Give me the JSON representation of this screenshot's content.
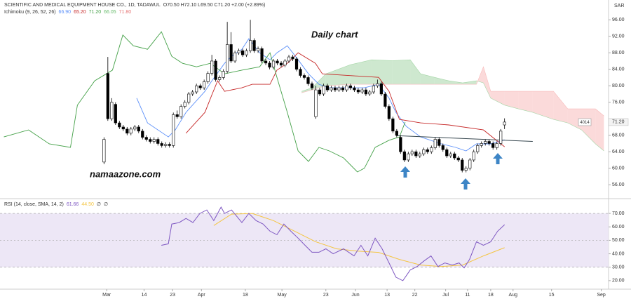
{
  "chart_data": [
    {
      "type": "candlestick",
      "title": "SCIENTIFIC AND MEDICAL EQUIPMENT HOUSE CO., 1D, TADAWUL",
      "subtitle": "O70.50 H72.10 L69.50 C71.20 +2.00 (+2.89%)",
      "indicator": "Ichimoku (9, 26, 52, 26)",
      "unit": "SAR",
      "annotations": [
        "Daily chart",
        "namaazone.com",
        "4014"
      ],
      "up_color": "#ffffff",
      "down_color": "#000000",
      "xlim": [
        -27,
        131
      ],
      "ylim": [
        52.8,
        100.8
      ],
      "yticks": [
        {
          "value": 96,
          "label": "96.00"
        },
        {
          "value": 92,
          "label": "92.00"
        },
        {
          "value": 88,
          "label": "88.00"
        },
        {
          "value": 84,
          "label": "84.00"
        },
        {
          "value": 80,
          "label": "80.00"
        },
        {
          "value": 76,
          "label": "76.00"
        },
        {
          "value": 68,
          "label": "68.00"
        },
        {
          "value": 64,
          "label": "64.00"
        },
        {
          "value": 60,
          "label": "60.00"
        },
        {
          "value": 56,
          "label": "56.00"
        }
      ],
      "grid": false,
      "last_price": {
        "value": 71.2,
        "label": "71.20"
      },
      "candles": [
        [
          61.5,
          67.5,
          61,
          67
        ],
        [
          83,
          87,
          71.5,
          72
        ],
        [
          72,
          77,
          71.5,
          76
        ],
        [
          75.5,
          76,
          70.5,
          71
        ],
        [
          71,
          71.5,
          69.5,
          70
        ],
        [
          70,
          70.5,
          69,
          69.5
        ],
        [
          69.5,
          70,
          68,
          68.5
        ],
        [
          68.5,
          70,
          68,
          69.5
        ],
        [
          69.5,
          70.5,
          69,
          70
        ],
        [
          70,
          70.5,
          68.5,
          69
        ],
        [
          69,
          69.5,
          67,
          67.5
        ],
        [
          67.5,
          68,
          66.5,
          67
        ],
        [
          67,
          67.5,
          66,
          66.5
        ],
        [
          66.5,
          67.5,
          66,
          67
        ],
        [
          67,
          67.5,
          65.5,
          66
        ],
        [
          66,
          66.5,
          65,
          65.5
        ],
        [
          65.5,
          66.3,
          65,
          65.8
        ],
        [
          65.8,
          66.3,
          65,
          65.5
        ],
        [
          65.5,
          73.5,
          65,
          73
        ],
        [
          73,
          74,
          72,
          72.5
        ],
        [
          72.5,
          75.5,
          72,
          75
        ],
        [
          75,
          76.5,
          74.5,
          76
        ],
        [
          76,
          78.5,
          75.5,
          78
        ],
        [
          78,
          79,
          77.5,
          78.5
        ],
        [
          78.5,
          80.5,
          78,
          80
        ],
        [
          80,
          80.5,
          79,
          79.5
        ],
        [
          79.5,
          81.5,
          79,
          81
        ],
        [
          81,
          83.5,
          80.5,
          83
        ],
        [
          83,
          87.5,
          82.5,
          86
        ],
        [
          86,
          86.5,
          81,
          81.5
        ],
        [
          81.5,
          82.5,
          81,
          82
        ],
        [
          82,
          84,
          81.5,
          83.5
        ],
        [
          83.5,
          95.5,
          83,
          90
        ],
        [
          90,
          93,
          85.5,
          86
        ],
        [
          86,
          88.5,
          85.5,
          88
        ],
        [
          88,
          89,
          87.5,
          88.5
        ],
        [
          88.5,
          89,
          87,
          87.5
        ],
        [
          87.5,
          89,
          87,
          88.5
        ],
        [
          88.5,
          96,
          88,
          91
        ],
        [
          91,
          91.5,
          88,
          88.5
        ],
        [
          88.5,
          89.5,
          88,
          89
        ],
        [
          89,
          89.5,
          85.5,
          86
        ],
        [
          86,
          86.5,
          85,
          85.5
        ],
        [
          85.5,
          86,
          84,
          84.5
        ],
        [
          84.5,
          86.5,
          84,
          86
        ],
        [
          86,
          86.5,
          85,
          85.5
        ],
        [
          85.5,
          86,
          84.5,
          85
        ],
        [
          85,
          86.5,
          84.5,
          86
        ],
        [
          86,
          87.5,
          85.5,
          87
        ],
        [
          87,
          87.5,
          86,
          86.5
        ],
        [
          86.5,
          87,
          83.5,
          84
        ],
        [
          84,
          84.5,
          82,
          82.5
        ],
        [
          82.5,
          83,
          81.5,
          82
        ],
        [
          82,
          82.5,
          80,
          80.5
        ],
        [
          80.5,
          81,
          79,
          79.5
        ],
        [
          72.5,
          80,
          72,
          79
        ],
        [
          79,
          79.5,
          77.5,
          78
        ],
        [
          78,
          80.5,
          77.5,
          80
        ],
        [
          80,
          80.5,
          78.5,
          79
        ],
        [
          79,
          80,
          78.5,
          79.5
        ],
        [
          79.5,
          80,
          78.5,
          79
        ],
        [
          79,
          80,
          78.5,
          79.5
        ],
        [
          79.5,
          80,
          78.5,
          79
        ],
        [
          79,
          80.5,
          78.5,
          80
        ],
        [
          80,
          80.5,
          79,
          79.5
        ],
        [
          79.5,
          80,
          78.5,
          79
        ],
        [
          79,
          79.5,
          78,
          78.5
        ],
        [
          78.5,
          79.5,
          78,
          79
        ],
        [
          79,
          79.5,
          77.5,
          78
        ],
        [
          78,
          79,
          77.5,
          78.5
        ],
        [
          78.5,
          80.5,
          78,
          80
        ],
        [
          80,
          81.5,
          79.5,
          80.5
        ],
        [
          80.5,
          81,
          77.5,
          78
        ],
        [
          78,
          78.5,
          74.5,
          75
        ],
        [
          75,
          75.5,
          71.5,
          72
        ],
        [
          72,
          72.5,
          68.5,
          69
        ],
        [
          69,
          69.5,
          67.5,
          68
        ],
        [
          67.5,
          68,
          63.5,
          64
        ],
        [
          64,
          64.5,
          61.5,
          62
        ],
        [
          62,
          64,
          61.5,
          63.5
        ],
        [
          63.5,
          64.5,
          63,
          64
        ],
        [
          64,
          64.5,
          62.5,
          63
        ],
        [
          63,
          64,
          62.5,
          63.5
        ],
        [
          63.5,
          65,
          63,
          64.5
        ],
        [
          64.5,
          65,
          63.5,
          64
        ],
        [
          64,
          65.5,
          63.5,
          65
        ],
        [
          65,
          67.5,
          64.5,
          67
        ],
        [
          67,
          67.5,
          65,
          65.5
        ],
        [
          65.5,
          66,
          64,
          64.5
        ],
        [
          64.5,
          65,
          62.5,
          63
        ],
        [
          63,
          64,
          62.5,
          63.5
        ],
        [
          63.5,
          64,
          62,
          62.5
        ],
        [
          62.5,
          63,
          61.5,
          62
        ],
        [
          62,
          62.5,
          59,
          59.5
        ],
        [
          59.5,
          60.5,
          59,
          60
        ],
        [
          60,
          62.5,
          59.5,
          62
        ],
        [
          62,
          64.5,
          61.5,
          64
        ],
        [
          64,
          66,
          63.5,
          65.5
        ],
        [
          65.5,
          66.5,
          65,
          66
        ],
        [
          66,
          67,
          65.5,
          66.5
        ],
        [
          66.5,
          67,
          65.5,
          66
        ],
        [
          66,
          66.5,
          64.5,
          65
        ],
        [
          65,
          66.5,
          64.5,
          66
        ],
        [
          66,
          69.5,
          65.5,
          69
        ],
        [
          70.5,
          72.1,
          69.5,
          71.2
        ]
      ],
      "series": [
        {
          "name": "Conversion Line",
          "color": "#5b8ff9",
          "legend_value": "66.90",
          "x": [
            8.5,
            11.3,
            16.7,
            18.5,
            21.3,
            26.2,
            28,
            31.3,
            33.1,
            35.8,
            37.6,
            40.4,
            43.1,
            44.9,
            47.6,
            50.4,
            53.1,
            55.8,
            58.5,
            67.6,
            71.3,
            74,
            75.8,
            78.5,
            82.2,
            87.6,
            91.3,
            94,
            96.7,
            100.4,
            104
          ],
          "values": [
            77.0,
            71.0,
            67.6,
            69.3,
            73.55,
            78.65,
            81.2,
            85.45,
            87.15,
            88.85,
            91.4,
            88.0,
            86.3,
            88.0,
            89.7,
            86.3,
            82.9,
            80.35,
            79.5,
            79.5,
            80.35,
            77.0,
            73.55,
            70.15,
            67.6,
            65.9,
            65.05,
            64.2,
            65.9,
            65.9,
            66.9
          ]
        },
        {
          "name": "Base Line",
          "color": "#c62828",
          "legend_value": "65.20",
          "x": [
            21.3,
            26.2,
            28,
            29.5,
            31.3,
            35.8,
            38.5,
            43.1,
            44.9,
            47.6,
            50.4,
            54.9,
            56.7,
            71.3,
            74,
            76.7,
            82.2,
            89.5,
            98.5,
            104
          ],
          "values": [
            68.5,
            73.55,
            77.8,
            81.2,
            78.65,
            79.5,
            80.35,
            80.35,
            83.8,
            85.45,
            88.0,
            85.45,
            82.9,
            82.05,
            78.65,
            71.85,
            71.0,
            70.5,
            69.3,
            65.2
          ]
        },
        {
          "name": "Lagging Span",
          "color": "#43a047",
          "legend_value": "71.20",
          "x": [
            -26,
            -19.6,
            -14.2,
            -8.7,
            -6.9,
            -2.4,
            2.2,
            4.9,
            7.6,
            11.3,
            14.9,
            17.6,
            20.4,
            24,
            27.6,
            31.3,
            35.8,
            40.4,
            43.1,
            44.9,
            47.6,
            50.4,
            53.1,
            55.8,
            58.5,
            62.2,
            65.8,
            67.6,
            70.4,
            74,
            76.7,
            78.2
          ],
          "values": [
            67.6,
            69.3,
            65.9,
            65.05,
            75.3,
            81.2,
            83.8,
            92.3,
            89.7,
            88.85,
            93.1,
            87.15,
            85.45,
            84.6,
            85.45,
            82.9,
            83.8,
            84.6,
            88.0,
            82.05,
            73.55,
            64.2,
            61.65,
            65.05,
            64.2,
            62.5,
            59.1,
            60.0,
            65.05,
            66.8,
            67.6,
            71.2
          ]
        }
      ],
      "cloud": {
        "up_color": "#a5d6a7",
        "down_color": "#f8bbbb",
        "legend_values": [
          "66.05",
          "71.80"
        ],
        "x": [
          51.3,
          54,
          57.6,
          64,
          69.5,
          74.9,
          79.5,
          82.2,
          85.8,
          89.5,
          93.1,
          96.7,
          98.5,
          100.4,
          104,
          107.6,
          111.3,
          116.7,
          120.4,
          124,
          127.6,
          129.8
        ],
        "span_a": [
          78.65,
          79.5,
          82.9,
          85.1,
          86.3,
          86.1,
          86.3,
          82.9,
          82.05,
          81.2,
          80.7,
          81.2,
          80.7,
          77.0,
          75.3,
          74.4,
          73.55,
          71.85,
          71.0,
          69.3,
          65.9,
          64.2
        ],
        "span_b": [
          78.3,
          79.0,
          80.0,
          80.35,
          80.35,
          80.35,
          80.35,
          80.35,
          80.35,
          80.35,
          80.35,
          80.35,
          84.6,
          78.65,
          78.65,
          78.65,
          78.65,
          78.65,
          74.4,
          74.4,
          74.4,
          72.7
        ]
      },
      "trendline": {
        "color": "#37474f",
        "x": [
          75.8,
          111.3
        ],
        "values": [
          67.9,
          66.5
        ]
      }
    },
    {
      "type": "line",
      "title": "RSI (14, close, SMA, 14, 2)",
      "legend_extra": [
        "∅",
        "∅"
      ],
      "xlim": [
        -27,
        131
      ],
      "ylim": [
        14.7,
        80.5
      ],
      "xticks": [
        {
          "value": 0.7,
          "label": "Mar"
        },
        {
          "value": 10.4,
          "label": "14"
        },
        {
          "value": 17.8,
          "label": "23"
        },
        {
          "value": 25.3,
          "label": "Apr"
        },
        {
          "value": 36.7,
          "label": "18"
        },
        {
          "value": 46.2,
          "label": "May"
        },
        {
          "value": 57.6,
          "label": "23"
        },
        {
          "value": 65.3,
          "label": "Jun"
        },
        {
          "value": 73.5,
          "label": "13"
        },
        {
          "value": 80.7,
          "label": "22"
        },
        {
          "value": 88.7,
          "label": "Jul"
        },
        {
          "value": 94.4,
          "label": "11"
        },
        {
          "value": 100.4,
          "label": "18"
        },
        {
          "value": 106.2,
          "label": "Aug"
        },
        {
          "value": 116.2,
          "label": "15"
        },
        {
          "value": 129.1,
          "label": "Sep"
        }
      ],
      "yticks": [
        {
          "value": 70,
          "label": "70.00"
        },
        {
          "value": 60,
          "label": "60.00"
        },
        {
          "value": 50,
          "label": "50.00"
        },
        {
          "value": 40,
          "label": "40.00"
        },
        {
          "value": 30,
          "label": "30.00"
        },
        {
          "value": 20,
          "label": "20.00"
        }
      ],
      "band": [
        30,
        70
      ],
      "band_color": "#ede7f6",
      "midline": 50,
      "series": [
        {
          "name": "RSI",
          "color": "#7e57c2",
          "legend_value": "61.66",
          "x": [
            14.9,
            16.7,
            17.6,
            19.5,
            21.3,
            23.1,
            24.9,
            26.7,
            28.5,
            30.4,
            31.3,
            33.1,
            35.8,
            37.6,
            39.5,
            41.3,
            43.1,
            44.9,
            46.7,
            48.5,
            50.4,
            52.2,
            54,
            55.8,
            57.6,
            59.5,
            62.2,
            64.9,
            66.7,
            68.5,
            70.4,
            72.2,
            74,
            75.8,
            77.6,
            79.5,
            81.3,
            83.1,
            84.9,
            86.7,
            88.5,
            90.4,
            92.2,
            93.5,
            94.9,
            96.7,
            98.5,
            100.4,
            102.2,
            104
          ],
          "values": [
            46.3,
            47.4,
            62.1,
            63.2,
            66.3,
            63.2,
            70,
            72.6,
            64.7,
            74.7,
            70,
            72.6,
            63.2,
            70,
            64.7,
            62.1,
            56.8,
            54.2,
            62.1,
            56.8,
            51.6,
            46.3,
            41.1,
            41.1,
            43.7,
            40,
            43.7,
            38.4,
            46.3,
            38.4,
            51.6,
            43.7,
            33.2,
            22.6,
            20,
            27.9,
            30.5,
            34.7,
            38.4,
            30.5,
            33.2,
            31.6,
            33.2,
            29.5,
            35.8,
            48.9,
            46.3,
            48.9,
            56.8,
            61.66
          ]
        },
        {
          "name": "SMA",
          "color": "#f4c542",
          "legend_value": "44.50",
          "x": [
            28.5,
            33.1,
            38.5,
            44,
            49.5,
            54.9,
            60.4,
            65.8,
            71.3,
            76.7,
            82.2,
            87.6,
            93.1,
            98.5,
            104
          ],
          "values": [
            61,
            69.5,
            70,
            64.7,
            56.8,
            49,
            43.7,
            42,
            41,
            35.8,
            31.6,
            30.5,
            31.6,
            38.4,
            44.5
          ]
        }
      ]
    }
  ]
}
